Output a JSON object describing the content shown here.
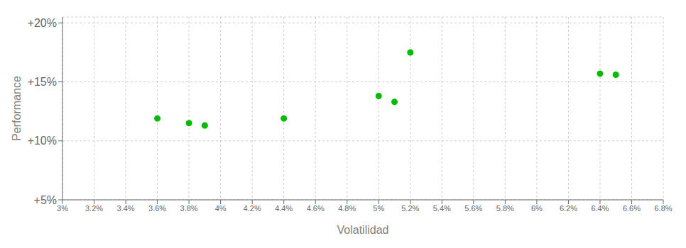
{
  "chart_data": {
    "type": "scatter",
    "xlabel": "Volatilidad",
    "ylabel": "Performance",
    "color": "#00bb00",
    "grid": true,
    "x": [
      0.036,
      0.038,
      0.039,
      0.044,
      0.05,
      0.051,
      0.052,
      0.064,
      0.065
    ],
    "values": [
      0.119,
      0.115,
      0.113,
      0.119,
      0.138,
      0.133,
      0.175,
      0.157,
      0.156
    ],
    "xlim": [
      0.03,
      0.068
    ],
    "ylim": [
      0.05,
      0.205
    ],
    "xticks": [
      {
        "value": 0.03,
        "label": "3%"
      },
      {
        "value": 0.032,
        "label": "3.2%"
      },
      {
        "value": 0.034,
        "label": "3.4%"
      },
      {
        "value": 0.036,
        "label": "3.6%"
      },
      {
        "value": 0.038,
        "label": "3.8%"
      },
      {
        "value": 0.04,
        "label": "4%"
      },
      {
        "value": 0.042,
        "label": "4.2%"
      },
      {
        "value": 0.044,
        "label": "4.4%"
      },
      {
        "value": 0.046,
        "label": "4.6%"
      },
      {
        "value": 0.048,
        "label": "4.8%"
      },
      {
        "value": 0.05,
        "label": "5%"
      },
      {
        "value": 0.052,
        "label": "5.2%"
      },
      {
        "value": 0.054,
        "label": "5.4%"
      },
      {
        "value": 0.056,
        "label": "5.6%"
      },
      {
        "value": 0.058,
        "label": "5.8%"
      },
      {
        "value": 0.06,
        "label": "6%"
      },
      {
        "value": 0.062,
        "label": "6.2%"
      },
      {
        "value": 0.064,
        "label": "6.4%"
      },
      {
        "value": 0.066,
        "label": "6.6%"
      },
      {
        "value": 0.068,
        "label": "6.8%"
      }
    ],
    "yticks": [
      {
        "value": 0.05,
        "label": "+5%"
      },
      {
        "value": 0.1,
        "label": "+10%"
      },
      {
        "value": 0.15,
        "label": "+15%"
      },
      {
        "value": 0.2,
        "label": "+20%"
      }
    ]
  }
}
